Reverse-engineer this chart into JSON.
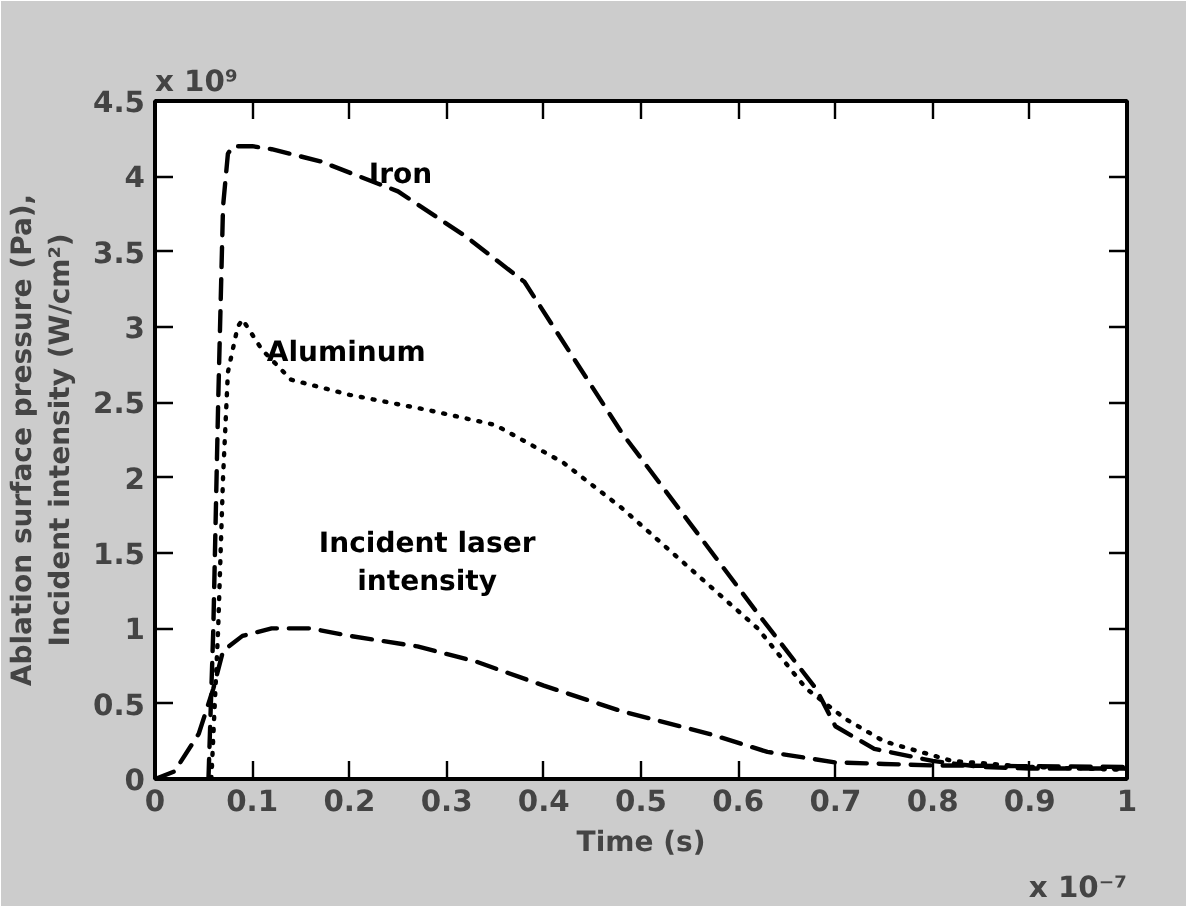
{
  "chart_data": {
    "type": "line",
    "xlabel": "Time (s)",
    "ylabel": "Ablation surface pressure (Pa),\nIncident intensity (W/cm²)",
    "xlim": [
      0,
      1
    ],
    "ylim": [
      0,
      4.5
    ],
    "xticks": [
      0,
      0.1,
      0.2,
      0.3,
      0.4,
      0.5,
      0.6,
      0.7,
      0.8,
      0.9,
      1
    ],
    "yticks": [
      0,
      0.5,
      1,
      1.5,
      2,
      2.5,
      3,
      3.5,
      4,
      4.5
    ],
    "grid": false,
    "legend": false,
    "annotations": [
      "x 10⁹",
      "x 10⁻⁷"
    ],
    "series": [
      {
        "name": "Iron",
        "color": "#000000",
        "line_style": "dashed",
        "x": [
          0.055,
          0.06,
          0.065,
          0.07,
          0.075,
          0.08,
          0.1,
          0.12,
          0.17,
          0.25,
          0.32,
          0.38,
          0.43,
          0.48,
          0.55,
          0.62,
          0.68,
          0.7,
          0.74,
          0.8,
          0.85,
          0.9,
          1.0
        ],
        "values": [
          0,
          1.0,
          2.5,
          3.8,
          4.15,
          4.2,
          4.2,
          4.18,
          4.1,
          3.9,
          3.6,
          3.3,
          2.8,
          2.3,
          1.7,
          1.1,
          0.6,
          0.35,
          0.2,
          0.12,
          0.08,
          0.07,
          0.07
        ]
      },
      {
        "name": "Aluminum",
        "color": "#000000",
        "line_style": "dotted",
        "x": [
          0.058,
          0.065,
          0.07,
          0.075,
          0.085,
          0.09,
          0.11,
          0.14,
          0.2,
          0.28,
          0.35,
          0.42,
          0.48,
          0.55,
          0.62,
          0.67,
          0.71,
          0.75,
          0.82,
          0.9,
          1.0
        ],
        "values": [
          0,
          1.0,
          2.0,
          2.7,
          3.0,
          3.05,
          2.85,
          2.65,
          2.55,
          2.45,
          2.35,
          2.1,
          1.8,
          1.4,
          1.0,
          0.6,
          0.4,
          0.25,
          0.12,
          0.08,
          0.06
        ]
      },
      {
        "name": "Incident laser intensity",
        "color": "#000000",
        "line_style": "dashed",
        "x": [
          0,
          0.02,
          0.045,
          0.06,
          0.07,
          0.09,
          0.12,
          0.16,
          0.2,
          0.27,
          0.33,
          0.4,
          0.48,
          0.57,
          0.63,
          0.7,
          0.75,
          0.8,
          1.0
        ],
        "values": [
          0,
          0.05,
          0.3,
          0.6,
          0.85,
          0.95,
          1.0,
          1.0,
          0.95,
          0.88,
          0.78,
          0.62,
          0.45,
          0.3,
          0.18,
          0.11,
          0.1,
          0.09,
          0.08
        ]
      }
    ]
  }
}
